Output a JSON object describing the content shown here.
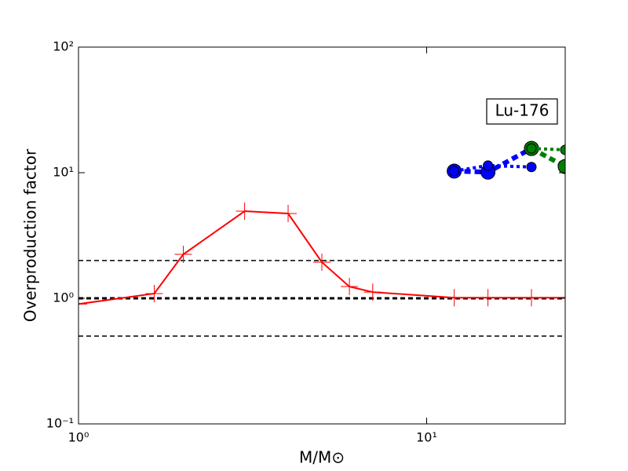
{
  "chart_data": {
    "type": "line",
    "x_label": "M/M⊙",
    "y_label": "Overproduction factor",
    "annotation": "Lu-176",
    "log_x": true,
    "log_y": true,
    "xlim": [
      1,
      25
    ],
    "ylim": [
      0.1,
      100
    ],
    "xticks": [
      {
        "value": 1,
        "label": "10⁰"
      },
      {
        "value": 10,
        "label": "10¹"
      }
    ],
    "yticks": [
      {
        "value": 0.1,
        "label": "10⁻¹"
      },
      {
        "value": 1,
        "label": "10⁰"
      },
      {
        "value": 10,
        "label": "10¹"
      },
      {
        "value": 100,
        "label": "10²"
      }
    ],
    "reference_lines": [
      {
        "value": 2,
        "width": 1.5
      },
      {
        "value": 1,
        "width": 3
      },
      {
        "value": 0.5,
        "width": 1.5
      }
    ],
    "series": [
      {
        "color": "#ff0000",
        "marker": "plus",
        "line": "solid",
        "x": [
          1,
          1.65,
          2,
          3,
          4,
          5,
          6,
          7,
          12,
          15,
          20,
          25
        ],
        "values": [
          0.9,
          1.09,
          2.24,
          4.94,
          4.73,
          1.94,
          1.24,
          1.12,
          1.01,
          1.01,
          1.01,
          1.01
        ]
      },
      {
        "color": "#0000ff",
        "marker": "circle-large",
        "line": "dashed",
        "x": [
          12,
          15,
          20
        ],
        "values": [
          10.3,
          10.1,
          15.6
        ]
      },
      {
        "color": "#0000ff",
        "marker": "circle-small",
        "line": "dotted",
        "x": [
          12,
          15,
          20
        ],
        "values": [
          10.3,
          11.4,
          11.1
        ]
      },
      {
        "color": "#008000",
        "marker": "circle-large",
        "line": "dashed",
        "x": [
          20,
          25
        ],
        "values": [
          15.6,
          11.2
        ]
      },
      {
        "color": "#008000",
        "marker": "circle-small",
        "line": "dotted",
        "x": [
          20,
          25
        ],
        "values": [
          15.6,
          15.2
        ]
      }
    ]
  }
}
